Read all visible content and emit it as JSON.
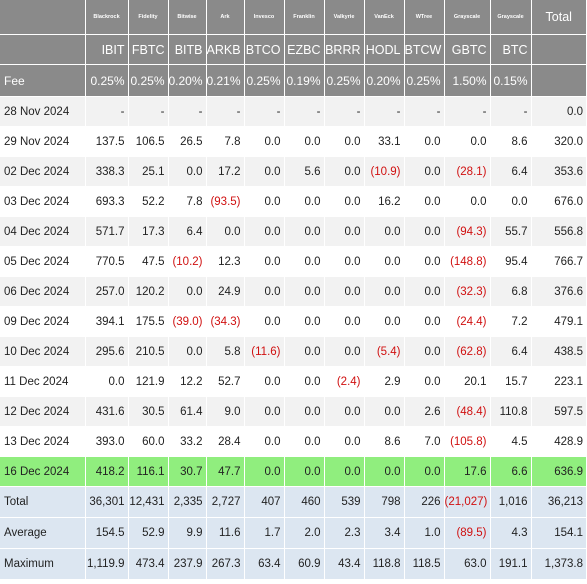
{
  "table": {
    "issuers": [
      "Blackrock",
      "Fidelity",
      "Bitwise",
      "Ark",
      "Invesco",
      "Franklin",
      "Valkyrie",
      "VanEck",
      "WTree",
      "Grayscale",
      "Grayscale"
    ],
    "total_label": "Total",
    "tickers": [
      "IBIT",
      "FBTC",
      "BITB",
      "ARKB",
      "BTCO",
      "EZBC",
      "BRRR",
      "HODL",
      "BTCW",
      "GBTC",
      "BTC"
    ],
    "fee": {
      "label": "Fee",
      "values": [
        "0.25%",
        "0.25%",
        "0.20%",
        "0.21%",
        "0.25%",
        "0.19%",
        "0.25%",
        "0.20%",
        "0.25%",
        "1.50%",
        "0.15%"
      ]
    },
    "rows": [
      {
        "date": "28 Nov 2024",
        "values": [
          "-",
          "-",
          "-",
          "-",
          "-",
          "-",
          "-",
          "-",
          "-",
          "-",
          "-"
        ],
        "total": "0.0",
        "highlight": false
      },
      {
        "date": "29 Nov 2024",
        "values": [
          "137.5",
          "106.5",
          "26.5",
          "7.8",
          "0.0",
          "0.0",
          "0.0",
          "33.1",
          "0.0",
          "0.0",
          "8.6"
        ],
        "total": "320.0",
        "highlight": false
      },
      {
        "date": "02 Dec 2024",
        "values": [
          "338.3",
          "25.1",
          "0.0",
          "17.2",
          "0.0",
          "5.6",
          "0.0",
          "(10.9)",
          "0.0",
          "(28.1)",
          "6.4"
        ],
        "total": "353.6",
        "highlight": false
      },
      {
        "date": "03 Dec 2024",
        "values": [
          "693.3",
          "52.2",
          "7.8",
          "(93.5)",
          "0.0",
          "0.0",
          "0.0",
          "16.2",
          "0.0",
          "0.0",
          "0.0"
        ],
        "total": "676.0",
        "highlight": false
      },
      {
        "date": "04 Dec 2024",
        "values": [
          "571.7",
          "17.3",
          "6.4",
          "0.0",
          "0.0",
          "0.0",
          "0.0",
          "0.0",
          "0.0",
          "(94.3)",
          "55.7"
        ],
        "total": "556.8",
        "highlight": false
      },
      {
        "date": "05 Dec 2024",
        "values": [
          "770.5",
          "47.5",
          "(10.2)",
          "12.3",
          "0.0",
          "0.0",
          "0.0",
          "0.0",
          "0.0",
          "(148.8)",
          "95.4"
        ],
        "total": "766.7",
        "highlight": false
      },
      {
        "date": "06 Dec 2024",
        "values": [
          "257.0",
          "120.2",
          "0.0",
          "24.9",
          "0.0",
          "0.0",
          "0.0",
          "0.0",
          "0.0",
          "(32.3)",
          "6.8"
        ],
        "total": "376.6",
        "highlight": false
      },
      {
        "date": "09 Dec 2024",
        "values": [
          "394.1",
          "175.5",
          "(39.0)",
          "(34.3)",
          "0.0",
          "0.0",
          "0.0",
          "0.0",
          "0.0",
          "(24.4)",
          "7.2"
        ],
        "total": "479.1",
        "highlight": false
      },
      {
        "date": "10 Dec 2024",
        "values": [
          "295.6",
          "210.5",
          "0.0",
          "5.8",
          "(11.6)",
          "0.0",
          "0.0",
          "(5.4)",
          "0.0",
          "(62.8)",
          "6.4"
        ],
        "total": "438.5",
        "highlight": false
      },
      {
        "date": "11 Dec 2024",
        "values": [
          "0.0",
          "121.9",
          "12.2",
          "52.7",
          "0.0",
          "0.0",
          "(2.4)",
          "2.9",
          "0.0",
          "20.1",
          "15.7"
        ],
        "total": "223.1",
        "highlight": false
      },
      {
        "date": "12 Dec 2024",
        "values": [
          "431.6",
          "30.5",
          "61.4",
          "9.0",
          "0.0",
          "0.0",
          "0.0",
          "0.0",
          "2.6",
          "(48.4)",
          "110.8"
        ],
        "total": "597.5",
        "highlight": false
      },
      {
        "date": "13 Dec 2024",
        "values": [
          "393.0",
          "60.0",
          "33.2",
          "28.4",
          "0.0",
          "0.0",
          "0.0",
          "8.6",
          "7.0",
          "(105.8)",
          "4.5"
        ],
        "total": "428.9",
        "highlight": false
      },
      {
        "date": "16 Dec 2024",
        "values": [
          "418.2",
          "116.1",
          "30.7",
          "47.7",
          "0.0",
          "0.0",
          "0.0",
          "0.0",
          "0.0",
          "17.6",
          "6.6"
        ],
        "total": "636.9",
        "highlight": true
      }
    ],
    "summary": [
      {
        "label": "Total",
        "values": [
          "36,301",
          "12,431",
          "2,335",
          "2,727",
          "407",
          "460",
          "539",
          "798",
          "226",
          "(21,027)",
          "1,016"
        ],
        "total": "36,213"
      },
      {
        "label": "Average",
        "values": [
          "154.5",
          "52.9",
          "9.9",
          "11.6",
          "1.7",
          "2.0",
          "2.3",
          "3.4",
          "1.0",
          "(89.5)",
          "4.3"
        ],
        "total": "154.1"
      },
      {
        "label": "Maximum",
        "values": [
          "1,119.9",
          "473.4",
          "237.9",
          "267.3",
          "63.4",
          "60.9",
          "43.4",
          "118.8",
          "118.5",
          "63.0",
          "191.1"
        ],
        "total": "1,373.8"
      }
    ],
    "colors": {
      "header": "#8a8a8a",
      "highlight": "#90ee7e",
      "summary": "#dce6f1",
      "negative": "#d01010",
      "stripe": "#f2f2f2"
    }
  }
}
